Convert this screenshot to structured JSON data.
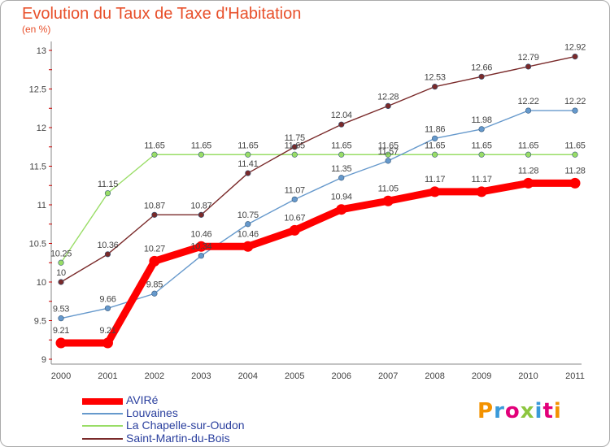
{
  "title": "Evolution du Taux de Taxe d'Habitation",
  "unit": "(en %)",
  "logo": {
    "text": "Proxiti",
    "colors": [
      "#f39200",
      "#3a9ad9",
      "#e2007a",
      "#8dc63f",
      "#3a9ad9",
      "#e2007a",
      "#f39200"
    ]
  },
  "colors": {
    "axis": "#888888",
    "tick_text": "#444444",
    "grid_dot": "#cc0000",
    "legend_text": "#2a3f9e",
    "title": "#e8502b"
  },
  "chart_data": {
    "type": "line",
    "title": "Evolution du Taux de Taxe d'Habitation",
    "ylabel": "(en %)",
    "xlabel": "",
    "x": [
      "2000",
      "2001",
      "2002",
      "2003",
      "2004",
      "2005",
      "2006",
      "2007",
      "2008",
      "2009",
      "2010",
      "2011"
    ],
    "ylim": [
      9,
      13
    ],
    "yticks": [
      "9",
      "9.5",
      "10",
      "10.5",
      "11",
      "11.5",
      "12",
      "12.5",
      "13"
    ],
    "legend_position": "bottom-left",
    "series": [
      {
        "name": "AVIRé",
        "color": "#ff0000",
        "values": [
          9.21,
          9.21,
          10.27,
          10.46,
          10.46,
          10.67,
          10.94,
          11.05,
          11.17,
          11.17,
          11.28,
          11.28
        ],
        "labels": [
          "9.21",
          "9.21",
          "10.27",
          "10.46",
          "10.46",
          "10.67",
          "10.94",
          "11.05",
          "11.17",
          "11.17",
          "11.28",
          "11.28"
        ]
      },
      {
        "name": "Louvaines",
        "color": "#6699cc",
        "values": [
          9.53,
          9.66,
          9.85,
          10.34,
          10.75,
          11.07,
          11.35,
          11.57,
          11.86,
          11.98,
          12.22,
          12.22
        ],
        "labels": [
          "9.53",
          "9.66",
          "9.85",
          "10.34",
          "10.75",
          "11.07",
          "11.35",
          "11.57",
          "11.86",
          "11.98",
          "12.22",
          "12.22"
        ]
      },
      {
        "name": "La Chapelle-sur-Oudon",
        "color": "#99dd66",
        "values": [
          10.25,
          11.15,
          11.65,
          11.65,
          11.65,
          11.65,
          11.65,
          11.65,
          11.65,
          11.65,
          11.65,
          11.65
        ],
        "labels": [
          "10.25",
          "11.15",
          "11.65",
          "11.65",
          "11.65",
          "11.65",
          "11.65",
          "11.65",
          "11.65",
          "11.65",
          "11.65",
          "11.65"
        ]
      },
      {
        "name": "Saint-Martin-du-Bois",
        "color": "#7a2a2a",
        "values": [
          10,
          10.36,
          10.87,
          10.87,
          11.41,
          11.75,
          12.04,
          12.28,
          12.53,
          12.66,
          12.79,
          12.92
        ],
        "labels": [
          "10",
          "10.36",
          "10.87",
          "10.87",
          "11.41",
          "11.75",
          "12.04",
          "12.28",
          "12.53",
          "12.66",
          "12.79",
          "12.92"
        ]
      }
    ]
  }
}
